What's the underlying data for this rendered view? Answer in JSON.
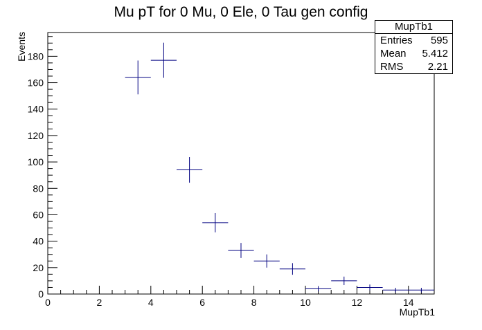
{
  "chart_data": {
    "type": "scatter",
    "style": "histogram error crosses",
    "title": "Mu pT for 0 Mu, 0 Ele, 0 Tau gen config",
    "xlabel": "MupTb1",
    "ylabel": "Events",
    "xlim": [
      0,
      15
    ],
    "ylim": [
      0,
      198
    ],
    "xticks": [
      0,
      2,
      4,
      6,
      8,
      10,
      12,
      14
    ],
    "yticks": [
      0,
      20,
      40,
      60,
      80,
      100,
      120,
      140,
      160,
      180
    ],
    "bin_width": 1,
    "series": [
      {
        "name": "MupTb1",
        "color": "#000080",
        "x": [
          3.5,
          4.5,
          5.5,
          6.5,
          7.5,
          8.5,
          9.5,
          10.5,
          11.5,
          12.5,
          13.5,
          14.5
        ],
        "y": [
          164,
          177,
          94,
          54,
          33,
          25,
          19,
          4,
          10,
          5,
          3,
          3
        ],
        "yerr": [
          12.8,
          13.3,
          9.7,
          7.3,
          5.7,
          5.0,
          4.4,
          2.0,
          3.2,
          2.2,
          1.7,
          1.7
        ]
      }
    ]
  },
  "stats": {
    "title": "MupTb1",
    "rows": [
      {
        "label": "Entries",
        "value": "595"
      },
      {
        "label": "Mean",
        "value": "5.412"
      },
      {
        "label": "RMS",
        "value": "2.21"
      }
    ]
  }
}
